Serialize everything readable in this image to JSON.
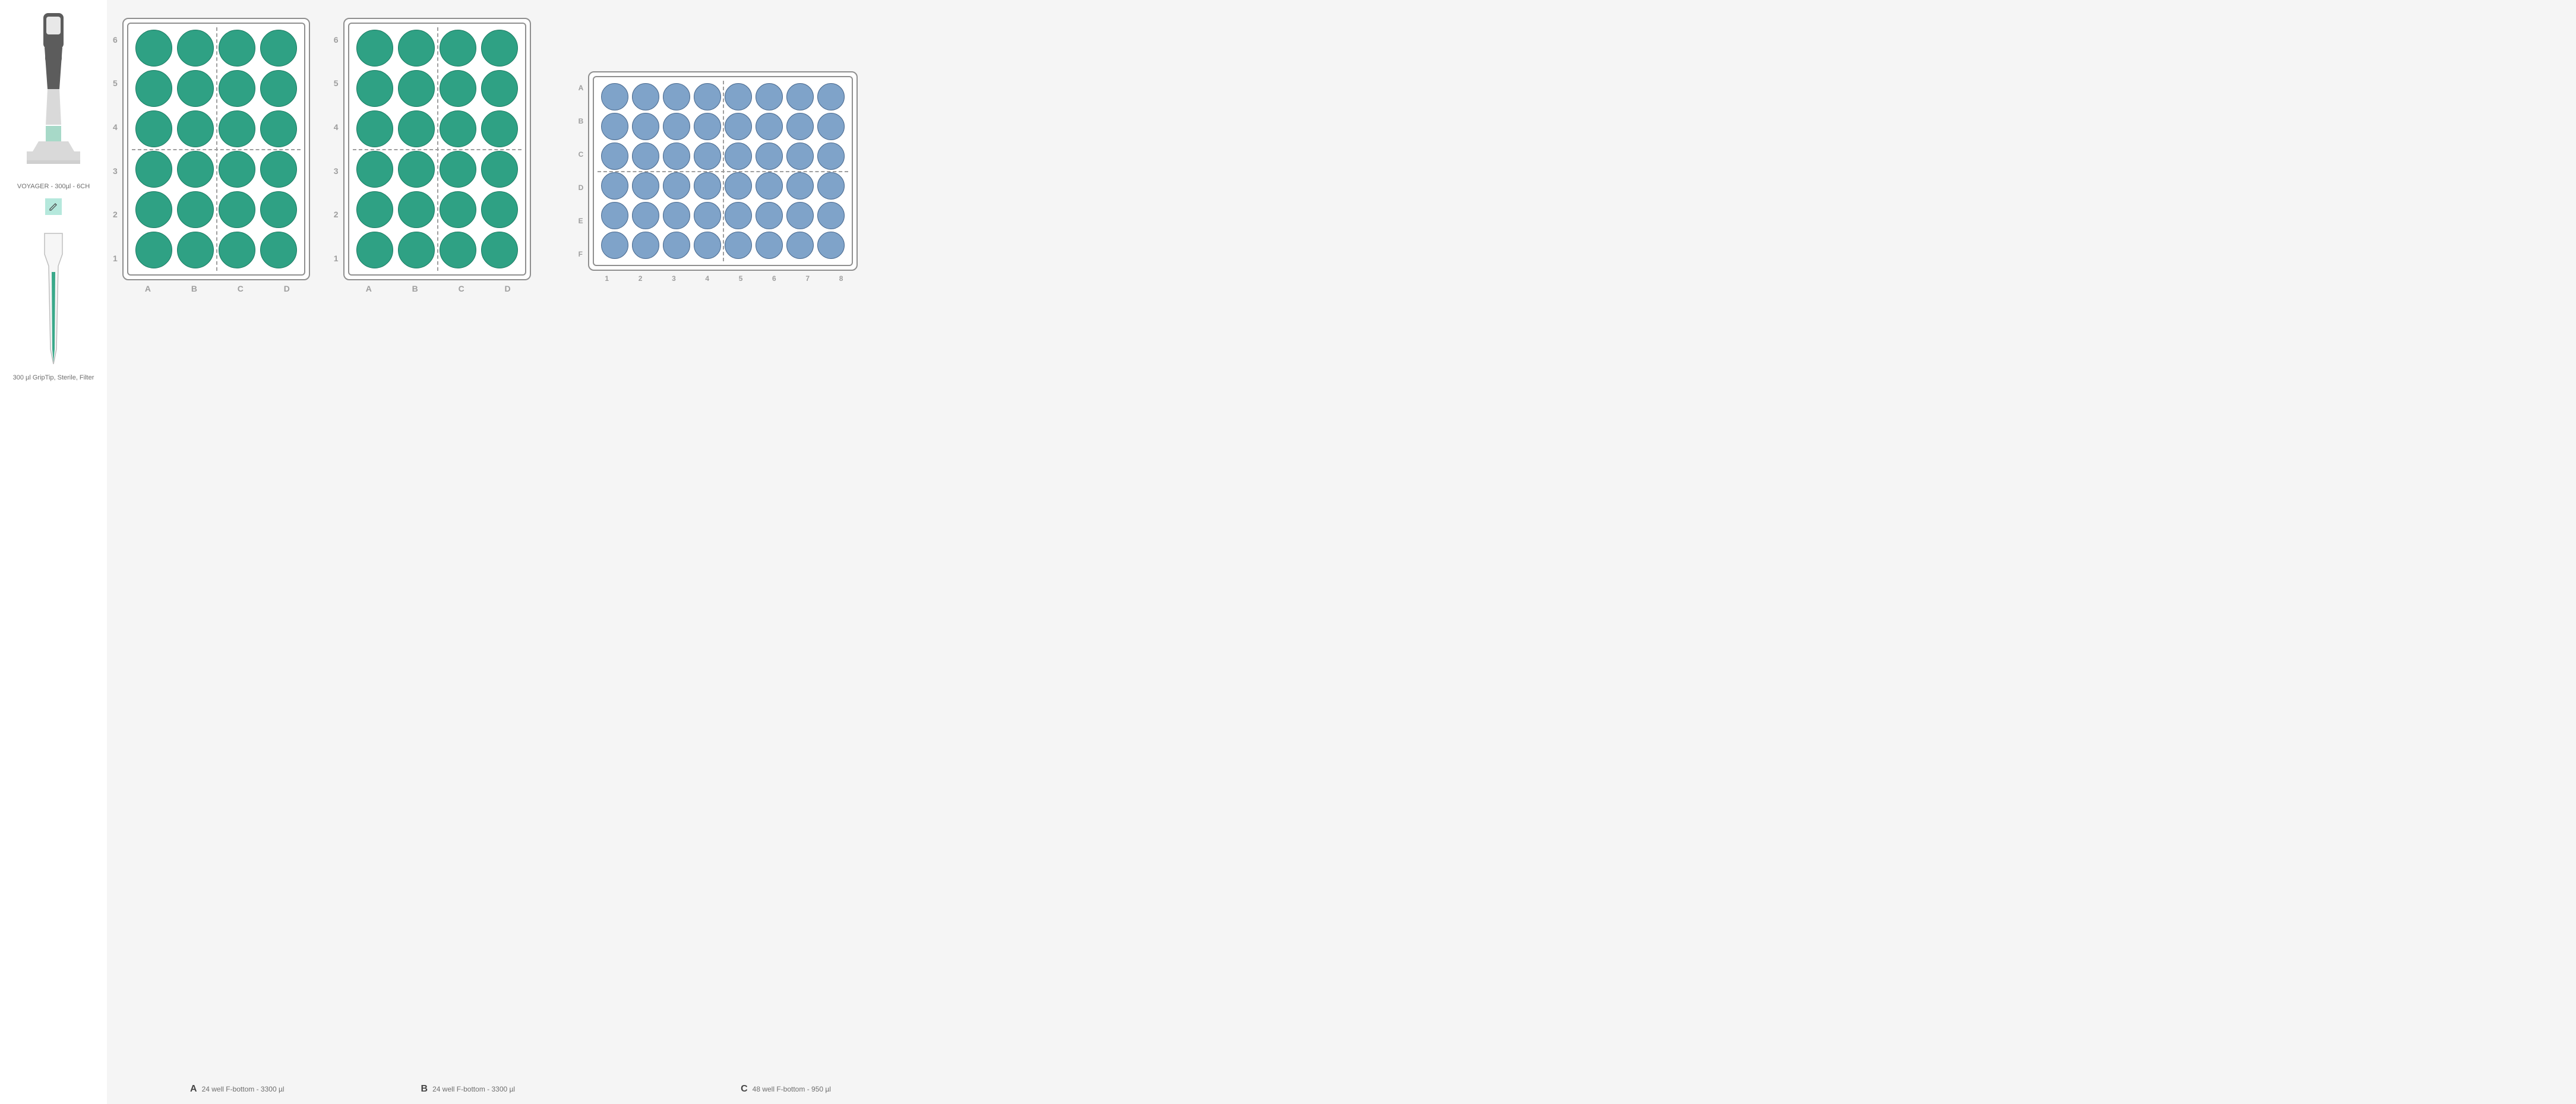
{
  "sidebar": {
    "pipette_label": "VOYAGER - 300µl - 6CH",
    "pipette_body_color": "#d9d9d9",
    "pipette_dark_color": "#5c5c5c",
    "pipette_screen_color": "#e8e8e8",
    "pipette_accent_color": "#a7d9c8",
    "edit_badge_bg": "#b5e8dc",
    "tip_label": "300 µl GripTip, Sterile, Filter",
    "tip_outline_color": "#bfbfbf",
    "tip_fill_color": "#3aa98a"
  },
  "workspace_bg": "#f5f5f5",
  "plates": {
    "A": {
      "letter": "A",
      "caption": "24 well F-bottom - 3300 µl",
      "type": "24-well",
      "rows": 6,
      "cols": 4,
      "row_labels": [
        "6",
        "5",
        "4",
        "3",
        "2",
        "1"
      ],
      "col_labels": [
        "A",
        "B",
        "C",
        "D"
      ],
      "well_fill": "#2fa184",
      "well_stroke": "#1a7a62",
      "frame_stroke": "#8f8f8f",
      "dash_color": "#9e9e9e",
      "v_dash_fractions": [
        0.5
      ],
      "h_dash_fractions": [
        0.5
      ]
    },
    "B": {
      "letter": "B",
      "caption": "24 well F-bottom - 3300 µl",
      "type": "24-well",
      "rows": 6,
      "cols": 4,
      "row_labels": [
        "6",
        "5",
        "4",
        "3",
        "2",
        "1"
      ],
      "col_labels": [
        "A",
        "B",
        "C",
        "D"
      ],
      "well_fill": "#2fa184",
      "well_stroke": "#1a7a62",
      "frame_stroke": "#8f8f8f",
      "dash_color": "#9e9e9e",
      "v_dash_fractions": [
        0.5
      ],
      "h_dash_fractions": [
        0.5
      ]
    },
    "C": {
      "letter": "C",
      "caption": "48 well F-bottom - 950 µl",
      "type": "48-well",
      "rows": 6,
      "cols": 8,
      "row_labels": [
        "A",
        "B",
        "C",
        "D",
        "E",
        "F"
      ],
      "col_labels": [
        "1",
        "2",
        "3",
        "4",
        "5",
        "6",
        "7",
        "8"
      ],
      "well_fill": "#7fa3c9",
      "well_stroke": "#4a6a8f",
      "frame_stroke": "#8f8f8f",
      "dash_color": "#9e9e9e",
      "v_dash_fractions": [
        0.5
      ],
      "h_dash_fractions": [
        0.5
      ]
    }
  },
  "label_color": "#9e9e9e",
  "caption_color": "#6e6e6e",
  "caption_letter_color": "#444444"
}
